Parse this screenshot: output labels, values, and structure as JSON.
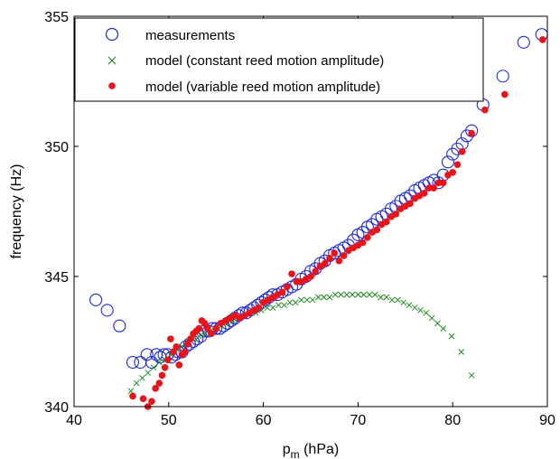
{
  "chart_data": {
    "type": "scatter",
    "title": "",
    "xlabel_main": "p",
    "xlabel_sub": "m",
    "xlabel_unit": " (hPa)",
    "ylabel": "frequency (Hz)",
    "xlim": [
      40,
      90
    ],
    "ylim": [
      340,
      355
    ],
    "xticks": [
      "40",
      "50",
      "60",
      "70",
      "80",
      "90"
    ],
    "yticks": [
      "340",
      "345",
      "350",
      "355"
    ],
    "legend_position": "top-left",
    "series": [
      {
        "name": "measurements",
        "marker": "open-circle",
        "color": "#1f2bd6",
        "x": [
          42.3,
          43.5,
          44.8,
          46.2,
          47.0,
          47.7,
          48.2,
          48.7,
          49.1,
          49.5,
          49.9,
          50.3,
          50.7,
          51.0,
          51.4,
          51.8,
          52.2,
          52.6,
          53.0,
          53.4,
          53.8,
          54.2,
          54.6,
          55.0,
          55.4,
          55.8,
          56.2,
          56.6,
          57.0,
          57.4,
          57.8,
          58.2,
          58.6,
          59.0,
          59.4,
          59.8,
          60.2,
          60.6,
          61.0,
          61.5,
          62.0,
          62.5,
          63.0,
          63.5,
          64.0,
          64.5,
          65.0,
          65.5,
          66.0,
          66.5,
          67.0,
          67.5,
          68.0,
          68.5,
          69.0,
          69.5,
          70.0,
          70.5,
          71.0,
          71.5,
          72.0,
          72.5,
          73.0,
          73.5,
          74.0,
          74.5,
          75.0,
          75.5,
          76.0,
          76.5,
          77.0,
          77.5,
          78.0,
          78.5,
          79.0,
          79.5,
          80.0,
          80.5,
          81.0,
          81.5,
          82.0,
          83.2,
          85.3,
          87.5,
          89.4
        ],
        "y": [
          344.1,
          343.7,
          343.1,
          341.7,
          341.7,
          342.0,
          341.7,
          342.0,
          341.9,
          342.0,
          342.0,
          341.9,
          342.0,
          342.1,
          342.1,
          342.3,
          342.4,
          342.5,
          342.6,
          342.7,
          342.9,
          342.9,
          343.0,
          343.0,
          343.0,
          343.1,
          343.2,
          343.3,
          343.4,
          343.5,
          343.6,
          343.6,
          343.7,
          343.8,
          343.9,
          344.0,
          344.1,
          344.2,
          344.3,
          344.3,
          344.4,
          344.5,
          344.6,
          344.7,
          344.9,
          345.0,
          345.2,
          345.3,
          345.5,
          345.6,
          345.8,
          345.9,
          346.0,
          346.1,
          346.2,
          346.4,
          346.6,
          346.7,
          346.9,
          347.0,
          347.2,
          347.3,
          347.4,
          347.6,
          347.7,
          347.9,
          348.0,
          348.1,
          348.3,
          348.4,
          348.5,
          348.6,
          348.7,
          348.6,
          348.9,
          349.4,
          349.7,
          349.9,
          350.1,
          350.4,
          350.6,
          351.6,
          352.7,
          354.0,
          354.3
        ]
      },
      {
        "name": "model (constant reed motion amplitude)",
        "marker": "cross",
        "color": "#1f8a1f",
        "x": [
          46.0,
          46.6,
          47.2,
          47.8,
          48.4,
          49.0,
          49.6,
          50.2,
          50.8,
          51.4,
          52.0,
          52.6,
          53.2,
          53.8,
          54.4,
          55.0,
          55.6,
          56.2,
          56.8,
          57.4,
          58.0,
          58.6,
          59.2,
          59.8,
          60.4,
          61.0,
          61.6,
          62.2,
          62.8,
          63.4,
          64.0,
          64.6,
          65.2,
          65.8,
          66.4,
          67.0,
          67.6,
          68.2,
          68.8,
          69.4,
          70.0,
          70.6,
          71.2,
          71.8,
          72.4,
          73.0,
          73.6,
          74.2,
          74.8,
          75.4,
          76.0,
          76.6,
          77.2,
          77.8,
          78.4,
          79.0,
          79.9,
          80.9,
          82.0
        ],
        "y": [
          340.6,
          340.9,
          341.1,
          341.3,
          341.5,
          341.7,
          341.8,
          342.0,
          342.2,
          342.3,
          342.5,
          342.6,
          342.7,
          342.8,
          342.9,
          343.0,
          343.1,
          343.2,
          343.3,
          343.4,
          343.5,
          343.6,
          343.6,
          343.7,
          343.8,
          343.8,
          343.9,
          343.9,
          344.0,
          344.0,
          344.1,
          344.1,
          344.1,
          344.2,
          344.2,
          344.2,
          344.3,
          344.3,
          344.3,
          344.3,
          344.3,
          344.3,
          344.3,
          344.3,
          344.2,
          344.2,
          344.1,
          344.1,
          344.0,
          343.9,
          343.8,
          343.7,
          343.6,
          343.4,
          343.2,
          343.0,
          342.7,
          342.1,
          341.2
        ]
      },
      {
        "name": "model (variable reed motion amplitude)",
        "marker": "filled-dot",
        "color": "#e8141a",
        "x": [
          46.2,
          47.3,
          47.8,
          48.2,
          48.6,
          49.0,
          49.3,
          49.6,
          49.9,
          50.2,
          50.5,
          50.8,
          51.1,
          51.4,
          51.7,
          52.0,
          52.3,
          52.6,
          52.9,
          53.2,
          53.5,
          53.8,
          54.1,
          54.5,
          55.0,
          55.5,
          56.0,
          56.5,
          57.0,
          57.5,
          58.0,
          58.5,
          59.0,
          59.5,
          60.0,
          60.5,
          61.0,
          61.5,
          62.0,
          62.5,
          63.0,
          63.5,
          64.0,
          64.5,
          65.0,
          65.5,
          66.0,
          66.5,
          67.0,
          67.5,
          68.0,
          68.5,
          69.0,
          69.5,
          70.0,
          70.5,
          71.0,
          71.5,
          72.0,
          72.5,
          73.0,
          73.5,
          74.0,
          74.5,
          75.0,
          75.5,
          76.0,
          76.5,
          77.0,
          77.5,
          78.0,
          78.5,
          79.0,
          79.5,
          80.0,
          80.5,
          81.0,
          82.0,
          83.4,
          85.5,
          89.5
        ],
        "y": [
          340.4,
          340.3,
          340.0,
          340.2,
          340.7,
          340.9,
          341.2,
          341.5,
          341.8,
          342.6,
          342.1,
          342.3,
          341.6,
          342.0,
          342.1,
          342.4,
          342.6,
          342.8,
          342.9,
          343.0,
          343.3,
          343.2,
          343.0,
          342.8,
          343.0,
          343.2,
          343.3,
          343.4,
          343.5,
          343.4,
          343.5,
          343.6,
          343.7,
          343.8,
          344.0,
          344.1,
          344.2,
          344.3,
          344.4,
          344.6,
          345.1,
          344.8,
          344.8,
          344.9,
          345.0,
          345.2,
          345.4,
          345.5,
          345.7,
          345.9,
          345.6,
          345.8,
          346.0,
          346.1,
          346.2,
          346.3,
          346.5,
          346.7,
          346.8,
          347.0,
          347.1,
          347.3,
          347.4,
          347.6,
          347.7,
          347.8,
          348.0,
          348.1,
          348.2,
          348.4,
          348.4,
          348.6,
          348.6,
          348.9,
          349.0,
          349.3,
          349.8,
          350.5,
          351.4,
          352.0,
          354.1
        ]
      }
    ]
  }
}
